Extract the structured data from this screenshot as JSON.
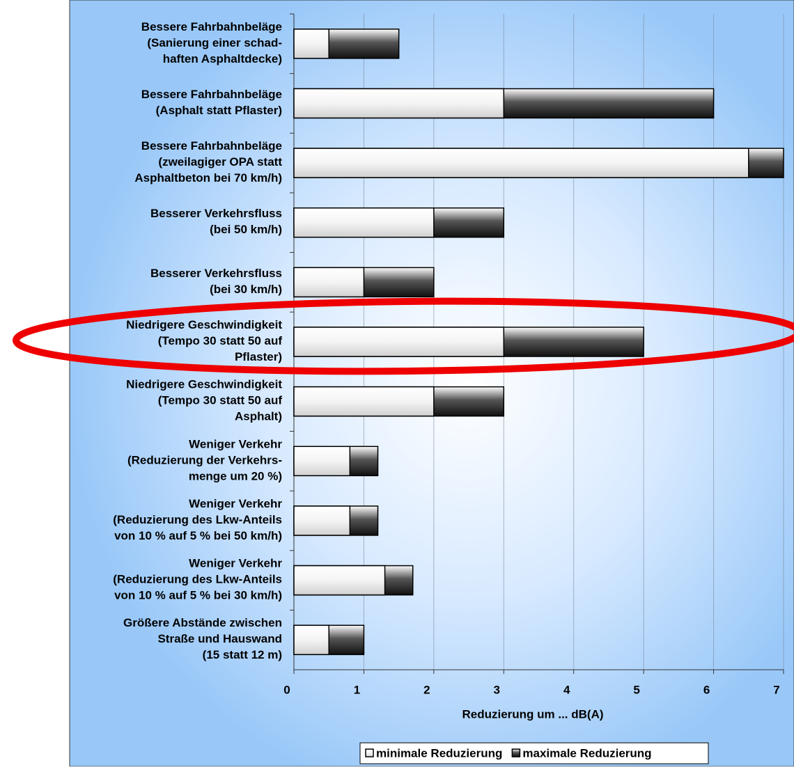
{
  "chart_data": {
    "type": "bar",
    "orientation": "horizontal",
    "categories": [
      "Bessere Fahrbahnbeläge\n(Sanierung einer schad-\nhaften Asphaltdecke)",
      "Bessere Fahrbahnbeläge\n(Asphalt statt Pflaster)",
      "Bessere Fahrbahnbeläge\n(zweilagiger OPA statt\nAsphaltbeton bei 70 km/h)",
      "Besserer Verkehrsfluss\n(bei 50 km/h)",
      "Besserer Verkehrsfluss\n(bei 30 km/h)",
      "Niedrigere Geschwindigkeit\n(Tempo 30 statt 50 auf\nPflaster)",
      "Niedrigere Geschwindigkeit\n(Tempo 30 statt 50 auf\nAsphalt)",
      "Weniger Verkehr\n(Reduzierung der Verkehrs-\nmenge um 20 %)",
      "Weniger Verkehr\n(Reduzierung des Lkw-Anteils\nvon 10 % auf 5 % bei 50 km/h)",
      "Weniger Verkehr\n(Reduzierung des Lkw-Anteils\nvon 10 % auf 5 % bei 30 km/h)",
      "Größere Abstände zwischen\nStraße und Hauswand\n(15 statt 12 m)"
    ],
    "series": [
      {
        "name": "minimale Reduzierung",
        "color": "#f4f4f4",
        "values": [
          0.5,
          3,
          6.5,
          2,
          1,
          3,
          2,
          0.8,
          0.8,
          1.3,
          0.5
        ]
      },
      {
        "name": "maximale Reduzierung",
        "color": "#222222",
        "values": [
          1.5,
          6,
          7,
          3,
          2,
          5,
          3,
          1.2,
          1.2,
          1.7,
          1.0
        ]
      }
    ],
    "x_label": "Reduzierung um ... dB(A)",
    "xlim": [
      0,
      7
    ],
    "xticks": [
      0,
      1,
      2,
      3,
      4,
      5,
      6,
      7
    ],
    "grid": true,
    "legend": "bottom"
  }
}
